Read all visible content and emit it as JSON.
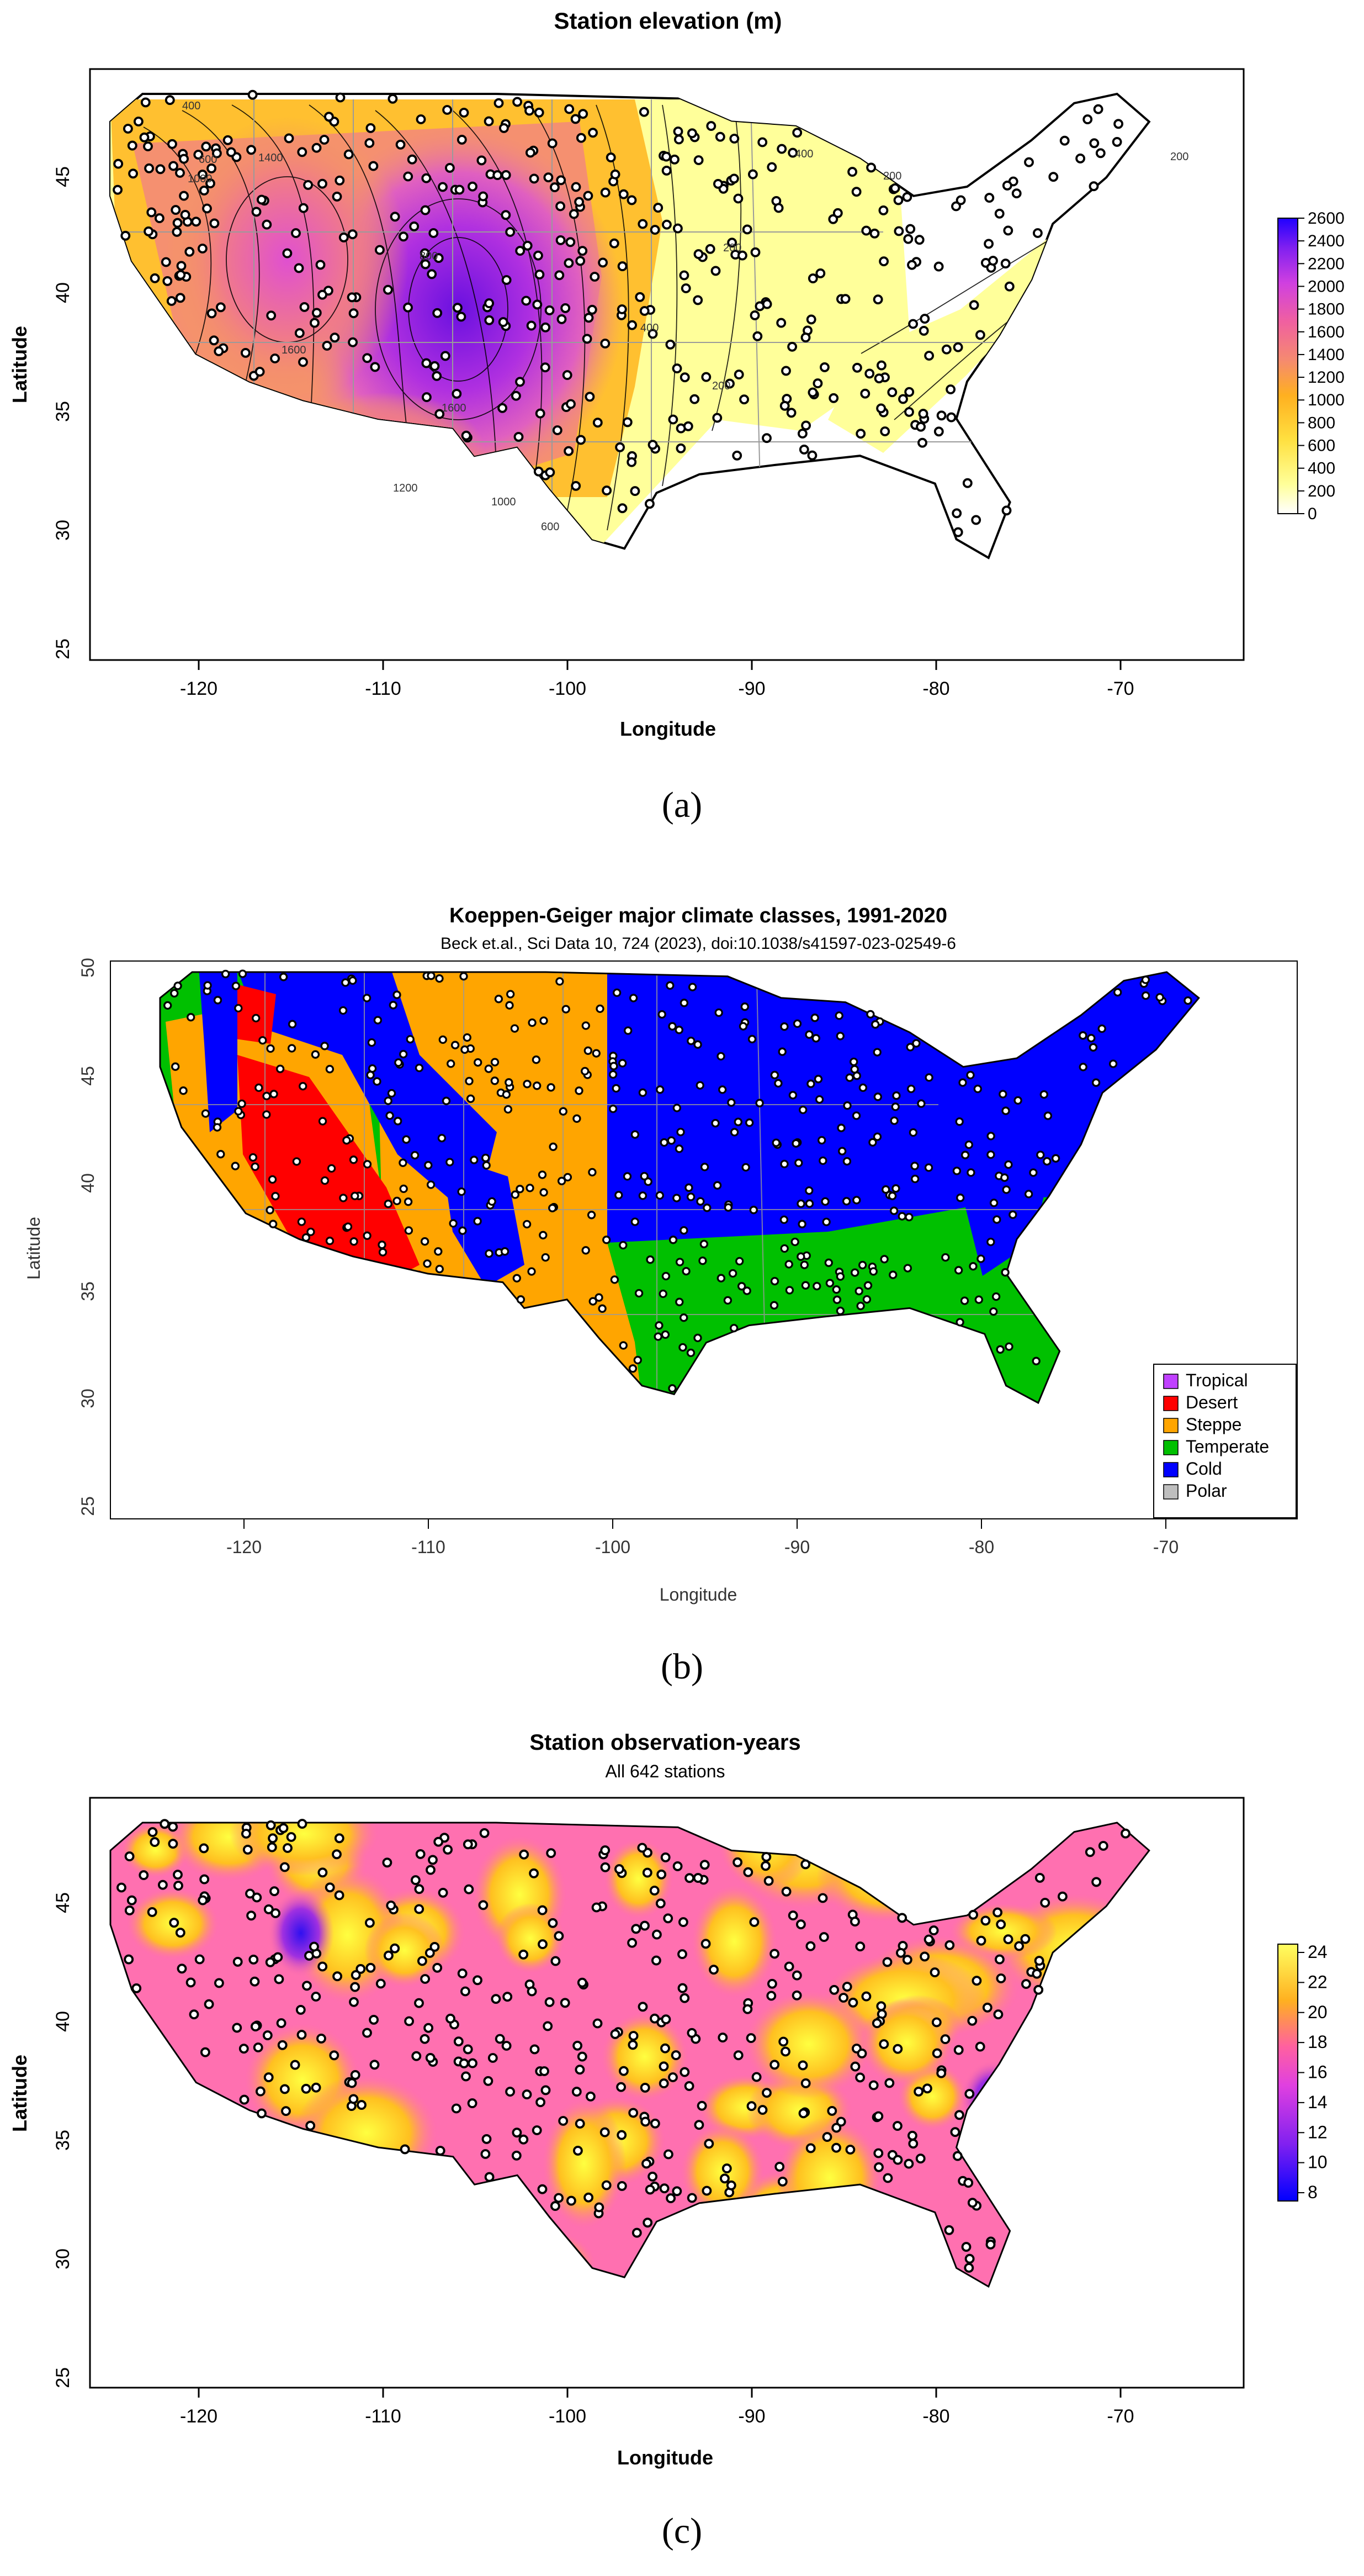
{
  "colors": {
    "cold": "#0000ff",
    "temperate": "#00c000",
    "steppe": "#ffa500",
    "desert": "#ff0000",
    "tropical": "#c040ff",
    "polar": "#bebebe",
    "background": "#ffffff"
  },
  "panels": [
    {
      "id": "a",
      "caption": "(a)",
      "title": "Station elevation (m)",
      "subtitle": "",
      "xlabel": "Longitude",
      "ylabel": "Latitude",
      "x_ticks": [
        "-120",
        "-110",
        "-100",
        "-90",
        "-80",
        "-70"
      ],
      "y_ticks": [
        "25",
        "30",
        "35",
        "40",
        "45"
      ],
      "colorbar_ticks": [
        "0",
        "200",
        "400",
        "600",
        "800",
        "1000",
        "1200",
        "1400",
        "1600",
        "1800",
        "2000",
        "2200",
        "2400",
        "2600"
      ],
      "contour_labels": [
        "400",
        "600",
        "1000",
        "1400",
        "1600",
        "200",
        "400",
        "200",
        "200",
        "400",
        "800",
        "1200",
        "1600",
        "1000",
        "600",
        "200"
      ]
    },
    {
      "id": "b",
      "caption": "(b)",
      "title": "Koeppen-Geiger major climate classes, 1991-2020",
      "subtitle": "Beck et.al., Sci Data 10, 724 (2023), doi:10.1038/s41597-023-02549-6",
      "xlabel": "Longitude",
      "ylabel": "Latitude",
      "x_ticks": [
        "-120",
        "-110",
        "-100",
        "-90",
        "-80",
        "-70"
      ],
      "y_ticks": [
        "25",
        "30",
        "35",
        "40",
        "45",
        "50"
      ],
      "legend": [
        "Tropical",
        "Desert",
        "Steppe",
        "Temperate",
        "Cold",
        "Polar"
      ]
    },
    {
      "id": "c",
      "caption": "(c)",
      "title": "Station observation-years",
      "subtitle": "All 642 stations",
      "xlabel": "Longitude",
      "ylabel": "Latitude",
      "x_ticks": [
        "-120",
        "-110",
        "-100",
        "-90",
        "-80",
        "-70"
      ],
      "y_ticks": [
        "25",
        "30",
        "35",
        "40",
        "45"
      ],
      "colorbar_ticks": [
        "8",
        "10",
        "12",
        "14",
        "16",
        "18",
        "20",
        "22",
        "24"
      ]
    }
  ]
}
